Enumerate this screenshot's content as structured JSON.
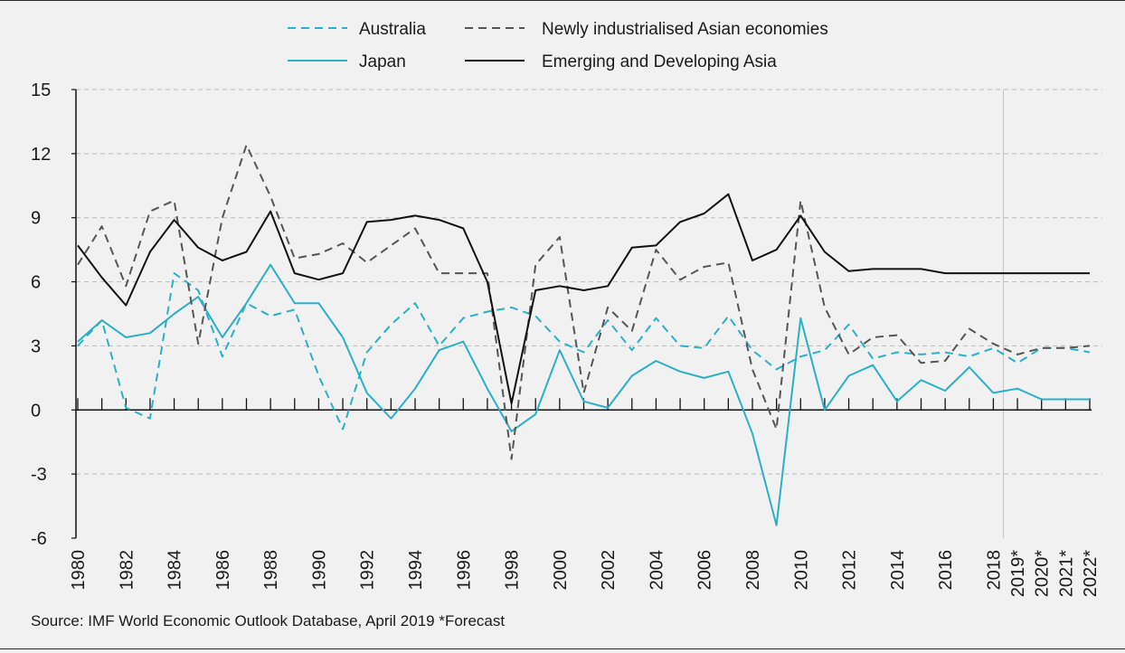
{
  "chart_data": {
    "type": "line",
    "x": [
      "1980",
      "1981",
      "1982",
      "1983",
      "1984",
      "1985",
      "1986",
      "1987",
      "1988",
      "1989",
      "1990",
      "1991",
      "1992",
      "1993",
      "1994",
      "1995",
      "1996",
      "1997",
      "1998",
      "1999",
      "2000",
      "2001",
      "2002",
      "2003",
      "2004",
      "2005",
      "2006",
      "2007",
      "2008",
      "2009",
      "2010",
      "2011",
      "2012",
      "2013",
      "2014",
      "2015",
      "2016",
      "2017",
      "2018",
      "2019*",
      "2020*",
      "2021*",
      "2022*"
    ],
    "xtick_labels": [
      "1980",
      "1982",
      "1984",
      "1986",
      "1988",
      "1990",
      "1992",
      "1994",
      "1996",
      "1998",
      "2000",
      "2002",
      "2004",
      "2006",
      "2008",
      "2010",
      "2012",
      "2014",
      "2016",
      "2018",
      "2019*",
      "2020*",
      "2021*",
      "2022*"
    ],
    "ylim": [
      -6,
      15
    ],
    "yticks": [
      -6,
      -3,
      0,
      3,
      6,
      9,
      12,
      15
    ],
    "ytick_labels": [
      "-6",
      "-3",
      "0",
      "3",
      "6",
      "9",
      "12",
      "15"
    ],
    "grid": "horizontal-dashed",
    "legend_position": "top",
    "forecast_start": "2018",
    "series": [
      {
        "name": "Australia",
        "color": "#2ab0c5",
        "style": "dashed",
        "values": [
          3.0,
          4.2,
          0.1,
          -0.4,
          6.4,
          5.6,
          2.5,
          5.0,
          4.4,
          4.7,
          1.6,
          -0.9,
          2.7,
          4.0,
          5.0,
          3.0,
          4.3,
          4.6,
          4.8,
          4.4,
          3.2,
          2.7,
          4.2,
          2.8,
          4.3,
          3.0,
          2.9,
          4.4,
          2.8,
          1.9,
          2.5,
          2.8,
          4.0,
          2.4,
          2.7,
          2.6,
          2.7,
          2.5,
          2.9,
          2.2,
          2.9,
          2.9,
          2.7
        ]
      },
      {
        "name": "Japan",
        "color": "#2ab0c5",
        "style": "solid",
        "values": [
          3.2,
          4.2,
          3.4,
          3.6,
          4.5,
          5.3,
          3.4,
          5.0,
          6.8,
          5.0,
          5.0,
          3.4,
          0.8,
          -0.4,
          1.0,
          2.8,
          3.2,
          1.0,
          -1.0,
          -0.2,
          2.8,
          0.4,
          0.1,
          1.6,
          2.3,
          1.8,
          1.5,
          1.8,
          -1.1,
          -5.4,
          4.3,
          0.0,
          1.6,
          2.1,
          0.4,
          1.4,
          0.9,
          2.0,
          0.8,
          1.0,
          0.5,
          0.5,
          0.5
        ]
      },
      {
        "name": "Newly industrialised Asian economies",
        "color": "#555555",
        "style": "dashed",
        "values": [
          6.8,
          8.6,
          5.8,
          9.3,
          9.8,
          3.1,
          9.0,
          12.4,
          10.0,
          7.1,
          7.3,
          7.8,
          6.9,
          7.7,
          8.5,
          6.4,
          6.4,
          6.4,
          -2.3,
          6.8,
          8.1,
          0.8,
          4.8,
          3.7,
          7.5,
          6.1,
          6.7,
          6.9,
          1.9,
          -0.9,
          9.8,
          4.8,
          2.6,
          3.4,
          3.5,
          2.2,
          2.3,
          3.8,
          3.1,
          2.6,
          2.9,
          2.9,
          3.0
        ]
      },
      {
        "name": "Emerging and Developing Asia",
        "color": "#111111",
        "style": "solid",
        "values": [
          7.7,
          6.2,
          4.9,
          7.4,
          8.9,
          7.6,
          7.0,
          7.4,
          9.3,
          6.4,
          6.1,
          6.4,
          8.8,
          8.9,
          9.1,
          8.9,
          8.5,
          6.0,
          0.3,
          5.6,
          5.8,
          5.6,
          5.8,
          7.6,
          7.7,
          8.8,
          9.2,
          10.1,
          7.0,
          7.5,
          9.1,
          7.4,
          6.5,
          6.6,
          6.6,
          6.6,
          6.4,
          6.4,
          6.4,
          6.4,
          6.4,
          6.4,
          6.4
        ]
      }
    ]
  },
  "source_text": "Source: IMF World Economic Outlook Database, April 2019 *Forecast"
}
